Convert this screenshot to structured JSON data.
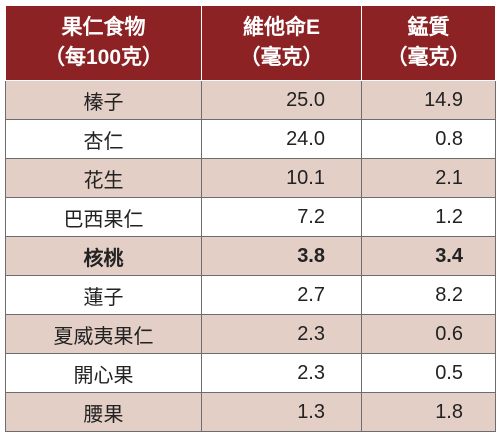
{
  "headers": [
    {
      "line1": "果仁食物",
      "line2": "（每100克）"
    },
    {
      "line1": "維他命E",
      "line2": "（毫克）"
    },
    {
      "line1": "錳質",
      "line2": "（毫克）"
    }
  ],
  "rows": [
    {
      "name": "榛子",
      "vitamin_e": "25.0",
      "manganese": "14.9"
    },
    {
      "name": "杏仁",
      "vitamin_e": "24.0",
      "manganese": "0.8"
    },
    {
      "name": "花生",
      "vitamin_e": "10.1",
      "manganese": "2.1"
    },
    {
      "name": "巴西果仁",
      "vitamin_e": "7.2",
      "manganese": "1.2"
    },
    {
      "name": "核桃",
      "vitamin_e": "3.8",
      "manganese": "3.4"
    },
    {
      "name": "蓮子",
      "vitamin_e": "2.7",
      "manganese": "8.2"
    },
    {
      "name": "夏威夷果仁",
      "vitamin_e": "2.3",
      "manganese": "0.6"
    },
    {
      "name": "開心果",
      "vitamin_e": "2.3",
      "manganese": "0.5"
    },
    {
      "name": "腰果",
      "vitamin_e": "1.3",
      "manganese": "1.8"
    }
  ],
  "colors": {
    "header_bg": "#8c2224",
    "shade_row": "#e4cfc7",
    "border": "#6d6d6d"
  }
}
